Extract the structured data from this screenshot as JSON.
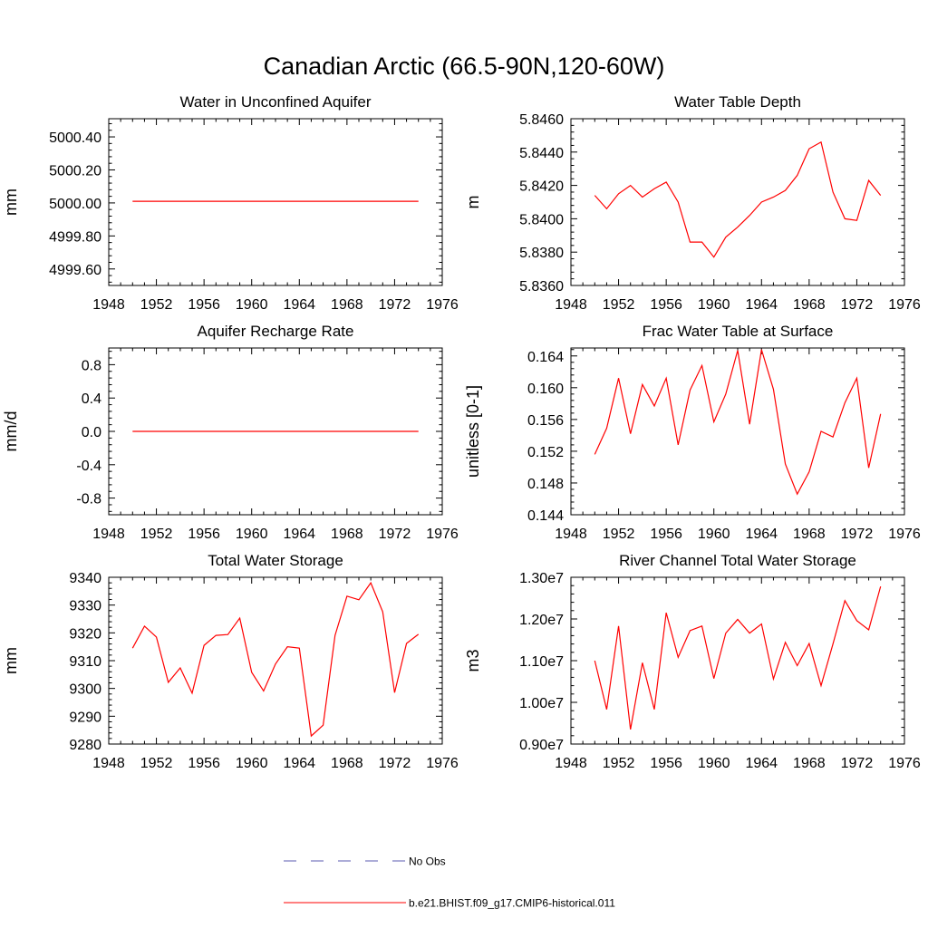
{
  "figure": {
    "title": "Canadian Arctic (66.5-90N,120-60W)"
  },
  "legend": {
    "placement": "bottom-center",
    "entries": [
      {
        "label": "No Obs",
        "color": "#5b5bb0",
        "style": "dashed"
      },
      {
        "label": "b.e21.BHIST.f09_g17.CMIP6-historical.011",
        "color": "#ff0000",
        "style": "solid"
      }
    ]
  },
  "chart_data": [
    {
      "type": "line",
      "title": "Water in Unconfined Aquifer",
      "ylabel": "mm",
      "xlim": [
        1948,
        1976
      ],
      "xticks": [
        1948,
        1952,
        1956,
        1960,
        1964,
        1968,
        1972,
        1976
      ],
      "ylim": [
        4999.5,
        5000.51
      ],
      "yticks": [
        4999.6,
        4999.8,
        5000.0,
        5000.2,
        5000.4
      ],
      "ytick_labels": [
        "4999.60",
        "4999.80",
        "5000.00",
        "5000.20",
        "5000.40"
      ],
      "series": [
        {
          "color": "#ff0000",
          "x": [
            1950,
            1951,
            1952,
            1953,
            1954,
            1955,
            1956,
            1957,
            1958,
            1959,
            1960,
            1961,
            1962,
            1963,
            1964,
            1965,
            1966,
            1967,
            1968,
            1969,
            1970,
            1971,
            1972,
            1973,
            1974
          ],
          "values": [
            5000.01,
            5000.01,
            5000.01,
            5000.01,
            5000.01,
            5000.01,
            5000.01,
            5000.01,
            5000.01,
            5000.01,
            5000.01,
            5000.01,
            5000.01,
            5000.01,
            5000.01,
            5000.01,
            5000.01,
            5000.01,
            5000.01,
            5000.01,
            5000.01,
            5000.01,
            5000.01,
            5000.01,
            5000.01
          ]
        }
      ]
    },
    {
      "type": "line",
      "title": "Water Table Depth",
      "ylabel": "m",
      "xlim": [
        1948,
        1976
      ],
      "xticks": [
        1948,
        1952,
        1956,
        1960,
        1964,
        1968,
        1972,
        1976
      ],
      "ylim": [
        5.836,
        5.846
      ],
      "yticks": [
        5.836,
        5.838,
        5.84,
        5.842,
        5.844,
        5.846
      ],
      "ytick_labels": [
        "5.8360",
        "5.8380",
        "5.8400",
        "5.8420",
        "5.8440",
        "5.8460"
      ],
      "series": [
        {
          "color": "#ff0000",
          "x": [
            1950,
            1951,
            1952,
            1953,
            1954,
            1955,
            1956,
            1957,
            1958,
            1959,
            1960,
            1961,
            1962,
            1963,
            1964,
            1965,
            1966,
            1967,
            1968,
            1969,
            1970,
            1971,
            1972,
            1973,
            1974
          ],
          "values": [
            5.8414,
            5.8406,
            5.8415,
            5.842,
            5.8413,
            5.8418,
            5.8422,
            5.841,
            5.8386,
            5.8386,
            5.8377,
            5.8389,
            5.8395,
            5.8402,
            5.841,
            5.8413,
            5.8417,
            5.8426,
            5.8442,
            5.8446,
            5.8416,
            5.84,
            5.8399,
            5.8423,
            5.8414
          ]
        }
      ]
    },
    {
      "type": "line",
      "title": "Aquifer Recharge Rate",
      "ylabel": "mm/d",
      "xlim": [
        1948,
        1976
      ],
      "xticks": [
        1948,
        1952,
        1956,
        1960,
        1964,
        1968,
        1972,
        1976
      ],
      "ylim": [
        -1.0,
        1.0
      ],
      "yticks": [
        -0.8,
        -0.4,
        0.0,
        0.4,
        0.8
      ],
      "ytick_labels": [
        "-0.8",
        "-0.4",
        "0.0",
        "0.4",
        "0.8"
      ],
      "series": [
        {
          "color": "#ff0000",
          "x": [
            1950,
            1951,
            1952,
            1953,
            1954,
            1955,
            1956,
            1957,
            1958,
            1959,
            1960,
            1961,
            1962,
            1963,
            1964,
            1965,
            1966,
            1967,
            1968,
            1969,
            1970,
            1971,
            1972,
            1973,
            1974
          ],
          "values": [
            0,
            0,
            0,
            0,
            0,
            0,
            0,
            0,
            0,
            0,
            0,
            0,
            0,
            0,
            0,
            0,
            0,
            0,
            0,
            0,
            0,
            0,
            0,
            0,
            0
          ]
        }
      ]
    },
    {
      "type": "line",
      "title": "Frac Water Table at Surface",
      "ylabel": "unitless [0-1]",
      "xlim": [
        1948,
        1976
      ],
      "xticks": [
        1948,
        1952,
        1956,
        1960,
        1964,
        1968,
        1972,
        1976
      ],
      "ylim": [
        0.144,
        0.165
      ],
      "yticks": [
        0.144,
        0.148,
        0.152,
        0.156,
        0.16,
        0.164
      ],
      "ytick_labels": [
        "0.144",
        "0.148",
        "0.152",
        "0.156",
        "0.160",
        "0.164"
      ],
      "series": [
        {
          "color": "#ff0000",
          "x": [
            1950,
            1951,
            1952,
            1953,
            1954,
            1955,
            1956,
            1957,
            1958,
            1959,
            1960,
            1961,
            1962,
            1963,
            1964,
            1965,
            1966,
            1967,
            1968,
            1969,
            1970,
            1971,
            1972,
            1973,
            1974
          ],
          "values": [
            0.1516,
            0.1549,
            0.1612,
            0.1542,
            0.1604,
            0.1577,
            0.1612,
            0.1528,
            0.1597,
            0.1628,
            0.1557,
            0.1592,
            0.1647,
            0.1554,
            0.1648,
            0.1598,
            0.1504,
            0.1466,
            0.1494,
            0.1545,
            0.1538,
            0.1581,
            0.1612,
            0.1499,
            0.1567
          ]
        }
      ]
    },
    {
      "type": "line",
      "title": "Total Water Storage",
      "ylabel": "mm",
      "xlim": [
        1948,
        1976
      ],
      "xticks": [
        1948,
        1952,
        1956,
        1960,
        1964,
        1968,
        1972,
        1976
      ],
      "ylim": [
        9280,
        9340
      ],
      "yticks": [
        9280,
        9290,
        9300,
        9310,
        9320,
        9330,
        9340
      ],
      "ytick_labels": [
        "9280",
        "9290",
        "9300",
        "9310",
        "9320",
        "9330",
        "9340"
      ],
      "series": [
        {
          "color": "#ff0000",
          "x": [
            1950,
            1951,
            1952,
            1953,
            1954,
            1955,
            1956,
            1957,
            1958,
            1959,
            1960,
            1961,
            1962,
            1963,
            1964,
            1965,
            1966,
            1967,
            1968,
            1969,
            1970,
            1971,
            1972,
            1973,
            1974
          ],
          "values": [
            9314.5,
            9322.4,
            9318.5,
            9302.2,
            9307.4,
            9298.3,
            9315.5,
            9319.1,
            9319.4,
            9325.3,
            9305.8,
            9299.1,
            9308.8,
            9315,
            9314.5,
            9282.9,
            9286.8,
            9319.1,
            9333.2,
            9331.9,
            9338,
            9327.6,
            9298.5,
            9316.2,
            9319.5
          ]
        }
      ]
    },
    {
      "type": "line",
      "title": "River Channel Total Water Storage",
      "ylabel": "m3",
      "xlim": [
        1948,
        1976
      ],
      "xticks": [
        1948,
        1952,
        1956,
        1960,
        1964,
        1968,
        1972,
        1976
      ],
      "ylim": [
        9000000,
        13000000
      ],
      "yticks": [
        9000000,
        10000000,
        11000000,
        12000000,
        13000000
      ],
      "ytick_labels": [
        "0.90e7",
        "1.00e7",
        "1.10e7",
        "1.20e7",
        "1.30e7"
      ],
      "series": [
        {
          "color": "#ff0000",
          "x": [
            1950,
            1951,
            1952,
            1953,
            1954,
            1955,
            1956,
            1957,
            1958,
            1959,
            1960,
            1961,
            1962,
            1963,
            1964,
            1965,
            1966,
            1967,
            1968,
            1969,
            1970,
            1971,
            1972,
            1973,
            1974
          ],
          "values": [
            11000000,
            9830000,
            11830000,
            9350000,
            10950000,
            9830000,
            12150000,
            11080000,
            11720000,
            11830000,
            10570000,
            11660000,
            11990000,
            11660000,
            11880000,
            10560000,
            11440000,
            10880000,
            11410000,
            10400000,
            11400000,
            12440000,
            11960000,
            11740000,
            12780000
          ]
        }
      ]
    }
  ]
}
